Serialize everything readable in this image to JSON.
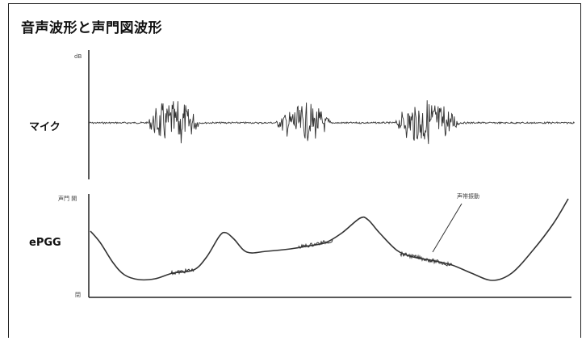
{
  "title": "音声波形と声門図波形",
  "mic": {
    "label": "マイク",
    "unit": "dB"
  },
  "epgg": {
    "label": "ePGG",
    "top_label": "声門 開",
    "bottom_label": "閉",
    "annotation": "声帯振動"
  },
  "colors": {
    "trace": "#333333",
    "axis": "#222222"
  }
}
